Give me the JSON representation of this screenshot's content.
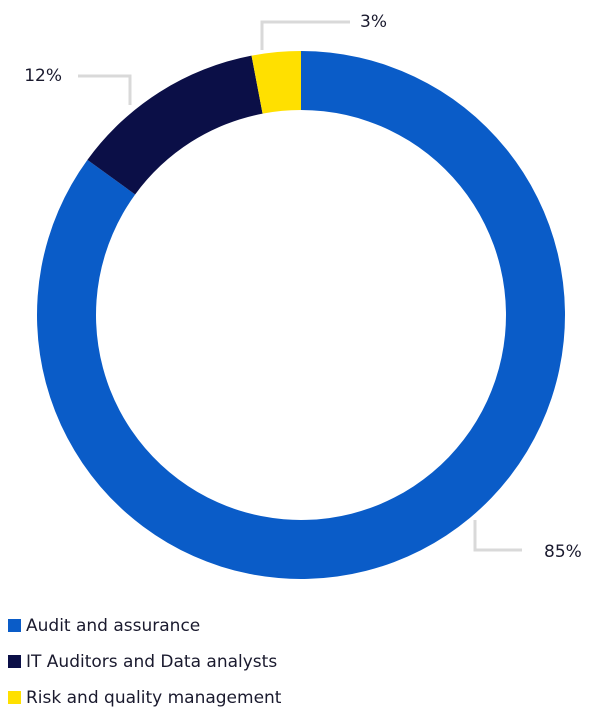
{
  "chart_data": {
    "type": "donut",
    "categories": [
      "Audit and assurance",
      "IT Auditors and Data analysts",
      "Risk and quality management"
    ],
    "values": [
      85,
      12,
      3
    ],
    "value_labels": [
      "85%",
      "12%",
      "3%"
    ],
    "colors": [
      "#0a5cc8",
      "#0b0f47",
      "#ffe000"
    ],
    "legend": "bottom-left"
  }
}
